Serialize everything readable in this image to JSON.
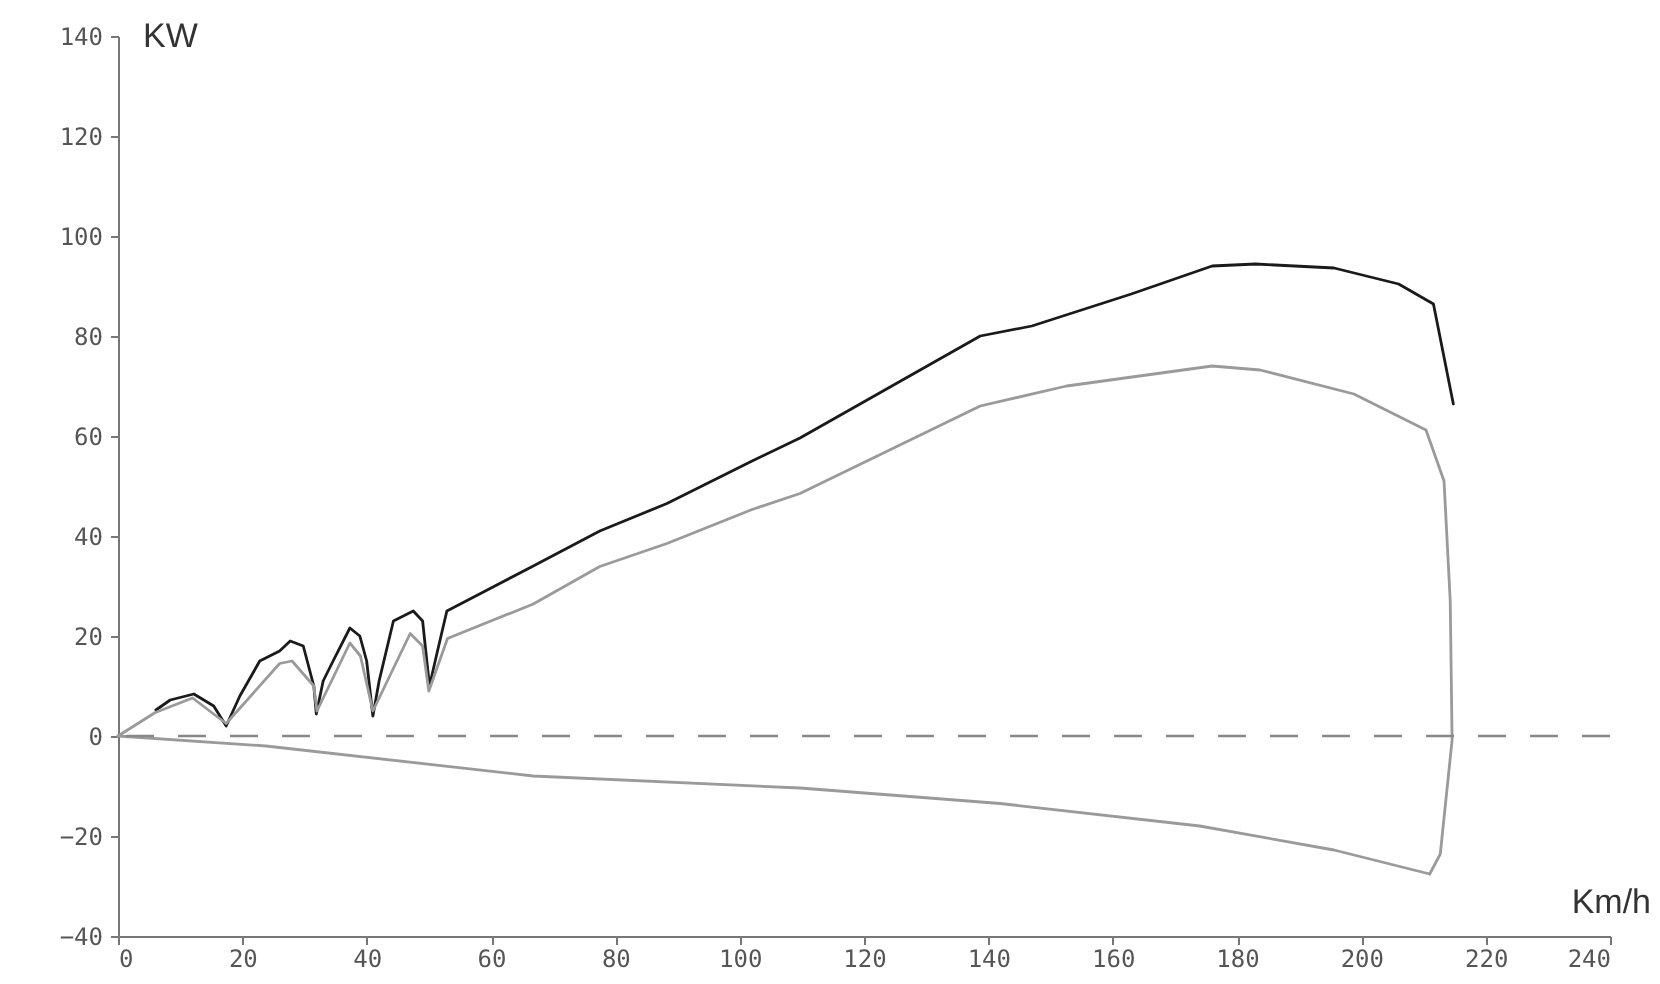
{
  "chart_data": {
    "type": "line",
    "xlabel": "Km/h",
    "ylabel": "KW",
    "xlim": [
      0,
      240
    ],
    "xticks": [
      0,
      20,
      40,
      60,
      80,
      100,
      120,
      140,
      160,
      180,
      200,
      220,
      240
    ],
    "ylim": [
      -40,
      140
    ],
    "yticks": [
      -40,
      -20,
      0,
      20,
      40,
      60,
      80,
      100,
      120,
      140
    ],
    "grid": false,
    "marker": "none",
    "line_style": "solid",
    "series": [
      {
        "color": "#1a1a1a",
        "x": [
          6.1,
          8.4,
          12.2,
          15.4,
          17.4,
          19.6,
          22.8,
          26,
          27.7,
          29.8,
          31.5,
          31.9,
          33,
          34.6,
          37.3,
          38.9,
          40,
          41,
          42,
          44.3,
          47.5,
          49,
          50.1,
          51.3,
          52.9,
          56,
          66.8,
          77.5,
          88.3,
          102,
          109.7,
          138.7,
          147,
          163,
          176,
          183,
          195.6,
          206,
          211.6,
          214.8
        ],
        "values": [
          5.2,
          7.2,
          8.4,
          6,
          2,
          8,
          15,
          17,
          19,
          18,
          10,
          4.4,
          11,
          15,
          21.6,
          20,
          15,
          4,
          11,
          23,
          25,
          23,
          10,
          16.5,
          25,
          27,
          34,
          41,
          46.5,
          55,
          59.6,
          80,
          82,
          88.4,
          94,
          94.4,
          93.6,
          90.4,
          86.4,
          66.4
        ]
      },
      {
        "color": "#9a9a9a",
        "x": [
          0,
          6,
          12,
          17.4,
          26,
          28,
          31.5,
          32,
          37.3,
          39,
          41,
          47,
          49,
          50,
          53,
          66.8,
          77.5,
          88.3,
          102,
          109.7,
          138.7,
          152.6,
          176,
          183.7,
          198.8,
          210.4,
          213.3,
          214.3,
          214.6,
          212.7,
          211
        ],
        "values": [
          0,
          4.7,
          7.6,
          2.5,
          14.5,
          15,
          10,
          5,
          18.6,
          16,
          5,
          20.5,
          18,
          9,
          19.5,
          26.4,
          33.9,
          38.5,
          45.3,
          48.5,
          66,
          70,
          74,
          73.2,
          68.4,
          61.2,
          51,
          27,
          -0.8,
          -23.6,
          -27.6
        ]
      },
      {
        "color": "#9a9a9a",
        "x": [
          0,
          23.8,
          66.8,
          109.7,
          141.9,
          174,
          195.6,
          211
        ],
        "values": [
          0,
          -2,
          -8,
          -10.4,
          -13.5,
          -18,
          -22.8,
          -27.6
        ]
      }
    ],
    "ref_lines": [
      {
        "axis": "y",
        "value": 0,
        "color": "#888888",
        "line_style": "dashed"
      }
    ]
  }
}
